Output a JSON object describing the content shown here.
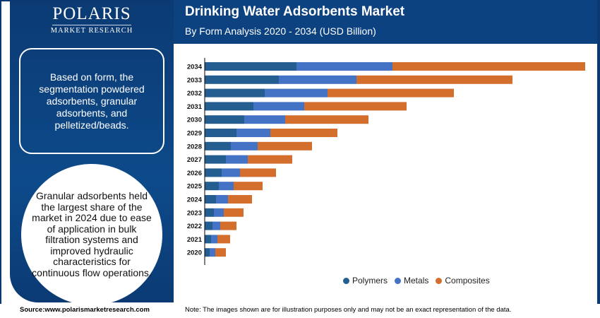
{
  "brand": {
    "name": "POLARIS",
    "tagline": "MARKET RESEARCH"
  },
  "info_box": "Based on form, the segmentation powdered adsorbents, granular adsorbents, and pelletized/beads.",
  "highlight": "Granular adsorbents held the largest share of the market in 2024 due to ease of application in bulk filtration systems and improved hydraulic characteristics for continuous flow operations.",
  "footer": {
    "source": "Source:www.polarismarketresearch.com",
    "note": "Note: The images shown are for illustration purposes only and may not be an exact representation of the data."
  },
  "chart_data": {
    "type": "bar",
    "orientation": "horizontal",
    "stacked": true,
    "title": "Drinking Water Adsorbents Market",
    "subtitle": "By Form Analysis 2020 - 2034 (USD Billion)",
    "categories": [
      "2034",
      "2033",
      "2032",
      "2031",
      "2030",
      "2029",
      "2028",
      "2027",
      "2026",
      "2025",
      "2024",
      "2023",
      "2022",
      "2021",
      "2020"
    ],
    "series": [
      {
        "name": "Polymers",
        "color": "#245e91",
        "values": [
          1.3,
          1.05,
          0.85,
          0.69,
          0.56,
          0.45,
          0.37,
          0.3,
          0.24,
          0.2,
          0.16,
          0.13,
          0.11,
          0.09,
          0.07
        ]
      },
      {
        "name": "Metals",
        "color": "#4472c4",
        "values": [
          1.36,
          1.1,
          0.89,
          0.72,
          0.58,
          0.48,
          0.38,
          0.31,
          0.26,
          0.21,
          0.17,
          0.14,
          0.11,
          0.09,
          0.08
        ]
      },
      {
        "name": "Composites",
        "color": "#d46e2c",
        "values": [
          2.73,
          2.21,
          1.79,
          1.45,
          1.18,
          0.95,
          0.77,
          0.63,
          0.51,
          0.41,
          0.34,
          0.28,
          0.23,
          0.18,
          0.15
        ]
      }
    ],
    "xaxis_visible": false,
    "grid": false,
    "legend_position": "bottom"
  }
}
